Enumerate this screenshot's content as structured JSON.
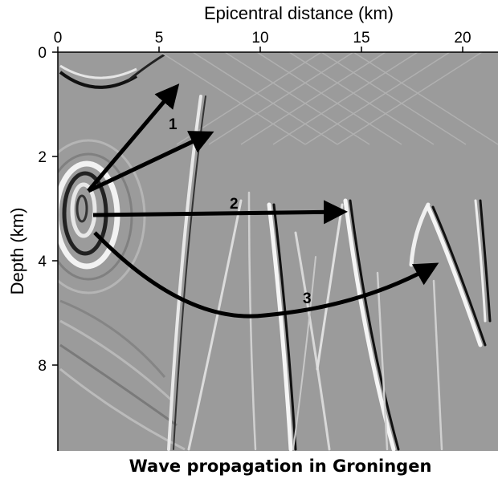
{
  "figure": {
    "x_axis_title": "Epicentral distance (km)",
    "y_axis_title": "Depth (km)",
    "x_ticks": [
      "0",
      "5",
      "10",
      "15",
      "20"
    ],
    "y_ticks": [
      "0",
      "2",
      "4",
      "8"
    ],
    "arrow_labels": [
      "1",
      "2",
      "3"
    ],
    "caption": "Wave propagation in Groningen"
  },
  "colors": {
    "background": "#9a9a9a",
    "arrow": "#000000",
    "wavefront_light": "#f2f2f2",
    "wavefront_dark": "#1a1a1a"
  }
}
